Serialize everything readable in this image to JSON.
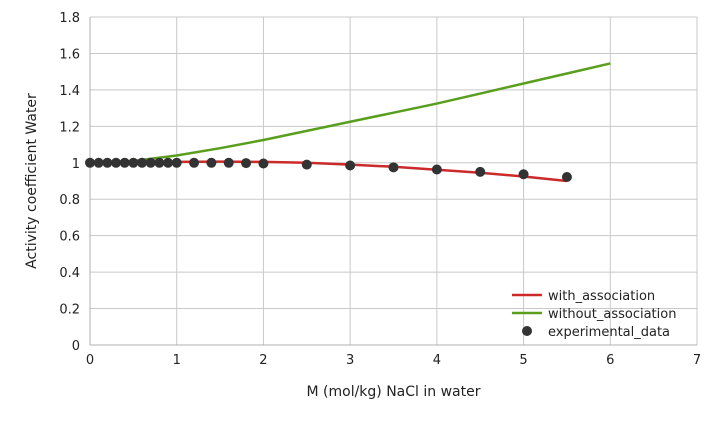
{
  "chart_data": {
    "type": "line",
    "title": "",
    "xlabel": "M (mol/kg) NaCl in water",
    "ylabel": "Activity coefficient Water",
    "xlim": [
      0,
      7
    ],
    "ylim": [
      0,
      1.8
    ],
    "x_ticks": [
      "0",
      "1",
      "2",
      "3",
      "4",
      "5",
      "6",
      "7"
    ],
    "y_ticks": [
      "0",
      "0.2",
      "0.4",
      "0.6",
      "0.8",
      "1",
      "1.2",
      "1.4",
      "1.6",
      "1.8"
    ],
    "grid": true,
    "legend_position": "bottom-right",
    "series": [
      {
        "name": "with_association",
        "kind": "line",
        "color": "#cc2a2a",
        "x": [
          0,
          0.5,
          1,
          1.5,
          2,
          2.5,
          3,
          3.5,
          4,
          4.5,
          5,
          5.5
        ],
        "y": [
          1.0,
          1.003,
          1.005,
          1.006,
          1.005,
          1.0,
          0.99,
          0.978,
          0.962,
          0.945,
          0.925,
          0.9
        ]
      },
      {
        "name": "without_association",
        "kind": "line",
        "color": "#5a9e1e",
        "x": [
          0,
          0.5,
          1,
          1.5,
          2,
          2.5,
          3,
          3.5,
          4,
          4.5,
          5,
          5.5,
          6
        ],
        "y": [
          1.0,
          1.01,
          1.04,
          1.08,
          1.125,
          1.175,
          1.225,
          1.275,
          1.325,
          1.38,
          1.435,
          1.49,
          1.545
        ]
      },
      {
        "name": "experimental_data",
        "kind": "scatter",
        "color": "#333333",
        "x": [
          0,
          0.1,
          0.2,
          0.3,
          0.4,
          0.5,
          0.6,
          0.7,
          0.8,
          0.9,
          1.0,
          1.2,
          1.4,
          1.6,
          1.8,
          2.0,
          2.5,
          3.0,
          3.5,
          4.0,
          4.5,
          5.0,
          5.5
        ],
        "y": [
          1.0,
          1.0,
          1.0,
          1.0,
          1.0,
          1.0,
          1.0,
          1.0,
          1.0,
          1.0,
          1.0,
          1.0,
          1.0,
          1.0,
          0.998,
          0.996,
          0.99,
          0.985,
          0.975,
          0.963,
          0.95,
          0.937,
          0.922
        ]
      }
    ]
  }
}
